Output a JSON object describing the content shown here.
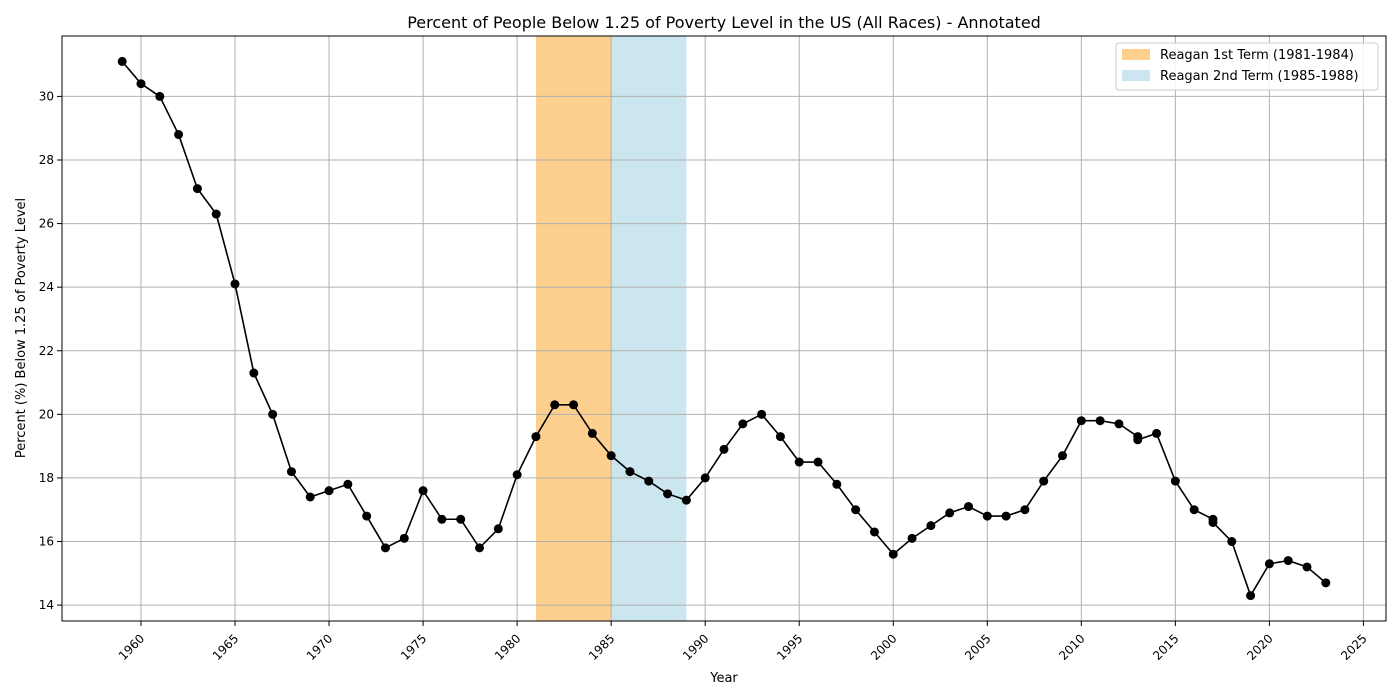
{
  "chart_data": {
    "type": "line",
    "title": "Percent of People Below 1.25 of Poverty Level in the US (All Races) - Annotated",
    "xlabel": "Year",
    "ylabel": "Percent (%) Below 1.25 of Poverty Level",
    "xlim": [
      1955.8,
      2026.2
    ],
    "ylim": [
      13.5,
      31.9
    ],
    "xticks": [
      1960,
      1965,
      1970,
      1975,
      1980,
      1985,
      1990,
      1995,
      2000,
      2005,
      2010,
      2015,
      2020,
      2025
    ],
    "yticks": [
      14,
      16,
      18,
      20,
      22,
      24,
      26,
      28,
      30
    ],
    "grid": true,
    "legend_position": "top-right",
    "line_color": "#000000",
    "spans": [
      {
        "name": "Reagan 1st Term (1981-1984)",
        "start": 1981,
        "end": 1985,
        "color": "#fdd08f"
      },
      {
        "name": "Reagan 2nd Term (1985-1988)",
        "start": 1985,
        "end": 1989,
        "color": "#cce6f0"
      }
    ],
    "x": [
      1959,
      1960,
      1961,
      1962,
      1963,
      1964,
      1965,
      1966,
      1967,
      1968,
      1969,
      1970,
      1971,
      1972,
      1973,
      1974,
      1975,
      1976,
      1977,
      1978,
      1979,
      1980,
      1981,
      1982,
      1983,
      1984,
      1985,
      1986,
      1987,
      1988,
      1989,
      1990,
      1991,
      1992,
      1993,
      1994,
      1995,
      1996,
      1997,
      1998,
      1999,
      2000,
      2001,
      2002,
      2003,
      2004,
      2005,
      2006,
      2007,
      2008,
      2009,
      2010,
      2011,
      2012,
      2013,
      2013,
      2014,
      2015,
      2016,
      2017,
      2017,
      2018,
      2019,
      2020,
      2021,
      2022,
      2023
    ],
    "y": [
      31.1,
      30.4,
      30.0,
      28.8,
      27.1,
      26.3,
      24.1,
      21.3,
      20.0,
      18.2,
      17.4,
      17.6,
      17.8,
      16.8,
      15.8,
      16.1,
      17.6,
      16.7,
      16.7,
      15.8,
      16.4,
      18.1,
      19.3,
      20.3,
      20.3,
      19.4,
      18.7,
      18.2,
      17.9,
      17.5,
      17.3,
      18.0,
      18.9,
      19.7,
      20.0,
      19.3,
      18.5,
      18.5,
      17.8,
      17.0,
      16.3,
      15.6,
      16.1,
      16.5,
      16.9,
      17.1,
      16.8,
      16.8,
      17.0,
      17.9,
      18.7,
      19.8,
      19.8,
      19.7,
      19.3,
      19.2,
      19.4,
      17.9,
      17.0,
      16.7,
      16.6,
      16.0,
      14.3,
      15.3,
      15.4,
      15.2,
      14.7
    ]
  }
}
